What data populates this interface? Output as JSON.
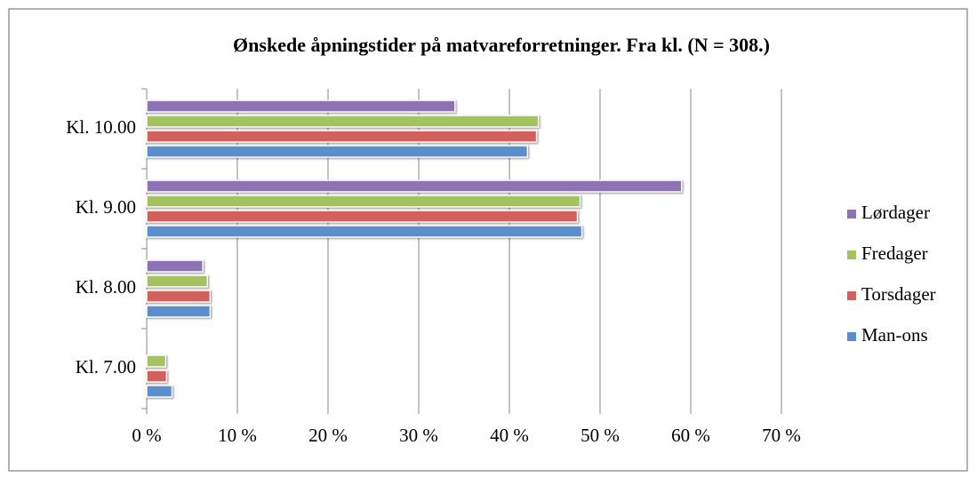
{
  "chart_data": {
    "type": "hbar",
    "title": "Ønskede åpningstider på matvareforretninger. Fra kl. (N = 308.)",
    "categories": [
      "Kl. 7.00",
      "Kl. 8.00",
      "Kl. 9.00",
      "Kl. 10.00"
    ],
    "series": [
      {
        "name": "Man-ons",
        "color": "#5b8fcc",
        "values": [
          2.8,
          7,
          48,
          42
        ]
      },
      {
        "name": "Torsdager",
        "color": "#d2605c",
        "values": [
          2.2,
          7,
          47.5,
          43
        ]
      },
      {
        "name": "Fredager",
        "color": "#a3c35e",
        "values": [
          2.1,
          6.7,
          47.8,
          43.2
        ]
      },
      {
        "name": "Lørdager",
        "color": "#8e73b4",
        "values": [
          0,
          6.2,
          59,
          34
        ]
      }
    ],
    "xlim": [
      0,
      70
    ],
    "xticks": [
      {
        "value": 0,
        "label": "0 %"
      },
      {
        "value": 10,
        "label": "10 %"
      },
      {
        "value": 20,
        "label": "20 %"
      },
      {
        "value": 30,
        "label": "30 %"
      },
      {
        "value": 40,
        "label": "40 %"
      },
      {
        "value": 50,
        "label": "50 %"
      },
      {
        "value": 60,
        "label": "60 %"
      },
      {
        "value": 70,
        "label": "70 %"
      }
    ],
    "grid": true,
    "legend": "right"
  }
}
